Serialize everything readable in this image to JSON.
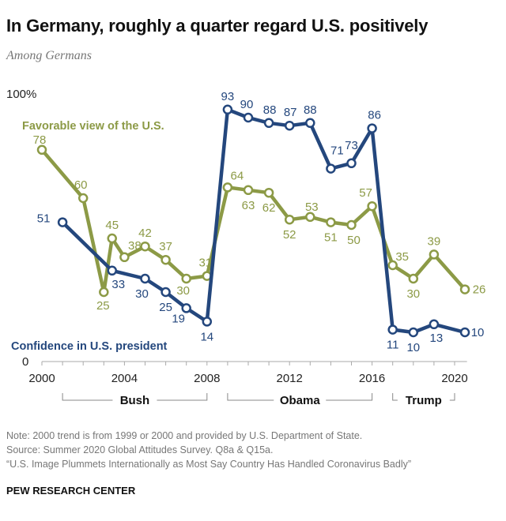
{
  "title": "In Germany, roughly a quarter regard U.S. positively",
  "subtitle": "Among Germans",
  "chart_data": {
    "type": "line",
    "ylim": [
      0,
      100
    ],
    "y_top_label": "100%",
    "y_bottom_label": "0",
    "xlim": [
      2000,
      2020.6
    ],
    "x_ticks": [
      2000,
      2004,
      2008,
      2012,
      2016,
      2020
    ],
    "grid": false,
    "series": [
      {
        "name": "Favorable view of the U.S.",
        "color": "#8c9a46",
        "x": [
          2000,
          2002,
          2003,
          2003.4,
          2004,
          2005,
          2006,
          2007,
          2008,
          2009,
          2010,
          2011,
          2012,
          2013,
          2014,
          2015,
          2016,
          2017,
          2018,
          2019,
          2020.5
        ],
        "values": [
          78,
          60,
          25,
          45,
          38,
          42,
          37,
          30,
          31,
          64,
          63,
          62,
          52,
          53,
          51,
          50,
          57,
          35,
          30,
          39,
          26
        ]
      },
      {
        "name": "Confidence in U.S. president",
        "color": "#24477d",
        "x": [
          2001,
          2003.4,
          2005,
          2006,
          2007,
          2008,
          2009,
          2010,
          2011,
          2012,
          2013,
          2014,
          2015,
          2016,
          2017,
          2018,
          2019,
          2020.5
        ],
        "values": [
          51,
          33,
          30,
          25,
          19,
          14,
          93,
          90,
          88,
          87,
          88,
          71,
          73,
          86,
          11,
          10,
          13,
          10
        ]
      }
    ],
    "presidents": [
      {
        "name": "Bush",
        "from": 2001,
        "to": 2008
      },
      {
        "name": "Obama",
        "from": 2009,
        "to": 2016
      },
      {
        "name": "Trump",
        "from": 2017,
        "to": 2020
      }
    ]
  },
  "notes": [
    "Note: 2000 trend is from 1999 or 2000 and provided by U.S. Department of State.",
    "Source: Summer 2020 Global Attitudes Survey. Q8a & Q15a.",
    "“U.S. Image Plummets Internationally as Most Say Country Has Handled Coronavirus Badly”"
  ],
  "brand": "PEW RESEARCH CENTER"
}
